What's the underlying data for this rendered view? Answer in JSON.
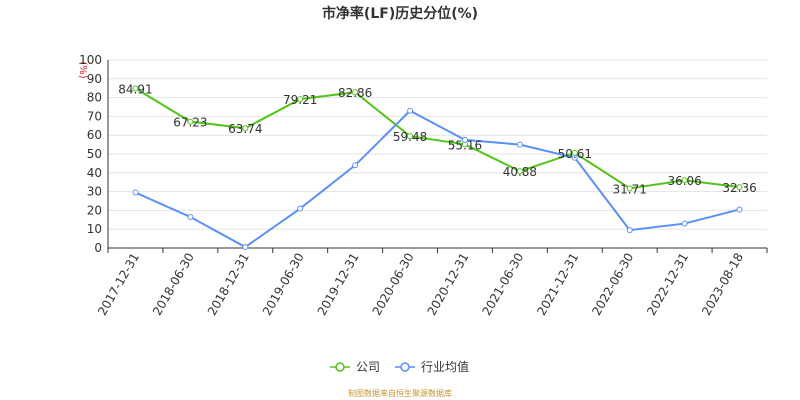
{
  "chart_data": {
    "type": "line",
    "title": "市净率(LF)历史分位(%)",
    "ylabel": "(%)",
    "ylim": [
      0,
      100
    ],
    "yticks": [
      0,
      10,
      20,
      30,
      40,
      50,
      60,
      70,
      80,
      90,
      100
    ],
    "grid": true,
    "legend_position": "bottom",
    "categories": [
      "2017-12-31",
      "2018-06-30",
      "2018-12-31",
      "2019-06-30",
      "2019-12-31",
      "2020-06-30",
      "2020-12-31",
      "2021-06-30",
      "2021-12-31",
      "2022-06-30",
      "2022-12-31",
      "2023-08-18"
    ],
    "series": [
      {
        "name": "公司",
        "color": "#52c41a",
        "values": [
          84.91,
          67.23,
          63.74,
          79.21,
          82.86,
          59.48,
          55.16,
          40.88,
          50.61,
          31.71,
          36.06,
          32.36
        ],
        "labels": [
          "84.91",
          "67.23",
          "63.74",
          "79.21",
          "82.86",
          "59.48",
          "55.16",
          "40.88",
          "50.61",
          "31.71",
          "36.06",
          "32.36"
        ]
      },
      {
        "name": "行业均值",
        "color": "#5b8ff9",
        "values": [
          29.5,
          16.5,
          0.5,
          21,
          44,
          73,
          57.5,
          55,
          48,
          9.5,
          13,
          20.5
        ]
      }
    ],
    "source": "制图数据来自恒生聚源数据库"
  }
}
